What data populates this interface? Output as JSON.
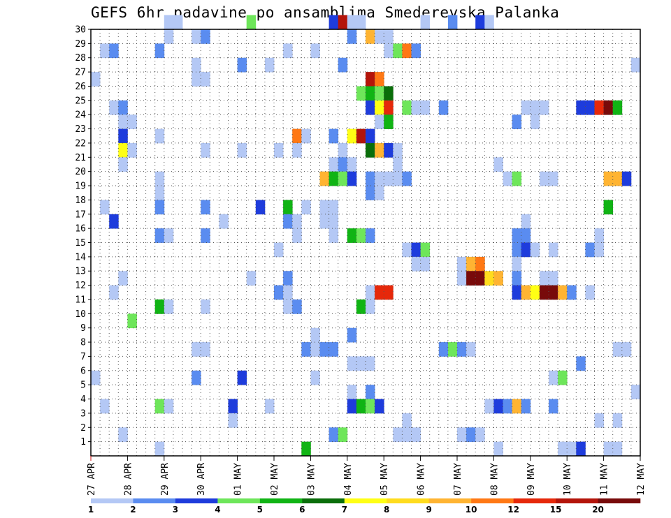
{
  "chart_data": {
    "type": "heatmap",
    "title": "GEFS 6hr padavine po ansamblima Smederevska Palanka",
    "xlabel": "",
    "ylabel": "",
    "x_tick_labels": [
      "27 APR",
      "28 APR",
      "29 APR",
      "30 APR",
      "01 MAY",
      "02 MAY",
      "03 MAY",
      "04 MAY",
      "05 MAY",
      "06 MAY",
      "07 MAY",
      "08 MAY",
      "09 MAY",
      "10 MAY",
      "11 MAY",
      "12 MAY"
    ],
    "x_steps_per_day": 4,
    "x_total_steps": 60,
    "y_tick_labels": [
      "1",
      "2",
      "3",
      "4",
      "5",
      "6",
      "7",
      "8",
      "9",
      "10",
      "11",
      "12",
      "13",
      "14",
      "15",
      "16",
      "17",
      "18",
      "19",
      "20",
      "21",
      "22",
      "23",
      "24",
      "25",
      "26",
      "27",
      "28",
      "29",
      "30"
    ],
    "ylim": [
      0,
      30
    ],
    "grid": true,
    "legend": {
      "placement": "bottom",
      "levels": [
        "1",
        "2",
        "3",
        "4",
        "5",
        "6",
        "7",
        "8",
        "9",
        "10",
        "12",
        "15",
        "20"
      ],
      "colors": [
        "#b4c8f5",
        "#5a8cf0",
        "#1e3cdc",
        "#6ee65a",
        "#10b414",
        "#0a6e0a",
        "#ffff14",
        "#ffdc1e",
        "#ffb432",
        "#ff7814",
        "#e6280a",
        "#b4140a",
        "#780a0a"
      ]
    },
    "cells": [
      [
        8,
        30,
        1
      ],
      [
        9,
        30,
        1
      ],
      [
        17,
        30,
        4
      ],
      [
        26,
        30,
        3
      ],
      [
        27,
        30,
        12
      ],
      [
        28,
        30,
        1
      ],
      [
        29,
        30,
        1
      ],
      [
        36,
        30,
        1
      ],
      [
        39,
        30,
        2
      ],
      [
        42,
        30,
        3
      ],
      [
        43,
        30,
        1
      ],
      [
        8,
        29,
        1
      ],
      [
        11,
        29,
        1
      ],
      [
        12,
        29,
        2
      ],
      [
        28,
        29,
        2
      ],
      [
        30,
        29,
        9
      ],
      [
        31,
        29,
        1
      ],
      [
        32,
        29,
        1
      ],
      [
        1,
        28,
        1
      ],
      [
        2,
        28,
        2
      ],
      [
        7,
        28,
        2
      ],
      [
        21,
        28,
        1
      ],
      [
        24,
        28,
        1
      ],
      [
        32,
        28,
        1
      ],
      [
        33,
        28,
        4
      ],
      [
        34,
        28,
        10
      ],
      [
        35,
        28,
        2
      ],
      [
        11,
        27,
        1
      ],
      [
        16,
        27,
        2
      ],
      [
        19,
        27,
        1
      ],
      [
        27,
        27,
        2
      ],
      [
        59,
        27,
        1
      ],
      [
        0,
        26,
        1
      ],
      [
        11,
        26,
        1
      ],
      [
        12,
        26,
        1
      ],
      [
        30,
        26,
        12
      ],
      [
        31,
        26,
        10
      ],
      [
        29,
        25,
        4
      ],
      [
        30,
        25,
        5
      ],
      [
        31,
        25,
        4
      ],
      [
        32,
        25,
        6
      ],
      [
        2,
        24,
        1
      ],
      [
        3,
        24,
        2
      ],
      [
        30,
        24,
        3
      ],
      [
        31,
        24,
        7
      ],
      [
        32,
        24,
        11
      ],
      [
        34,
        24,
        4
      ],
      [
        35,
        24,
        1
      ],
      [
        36,
        24,
        1
      ],
      [
        38,
        24,
        2
      ],
      [
        47,
        24,
        1
      ],
      [
        48,
        24,
        1
      ],
      [
        49,
        24,
        1
      ],
      [
        53,
        24,
        3
      ],
      [
        54,
        24,
        3
      ],
      [
        55,
        24,
        11
      ],
      [
        56,
        24,
        13
      ],
      [
        57,
        24,
        5
      ],
      [
        3,
        23,
        1
      ],
      [
        4,
        23,
        1
      ],
      [
        31,
        23,
        1
      ],
      [
        32,
        23,
        5
      ],
      [
        46,
        23,
        2
      ],
      [
        48,
        23,
        1
      ],
      [
        3,
        22,
        3
      ],
      [
        7,
        22,
        1
      ],
      [
        22,
        22,
        10
      ],
      [
        23,
        22,
        1
      ],
      [
        26,
        22,
        2
      ],
      [
        28,
        22,
        7
      ],
      [
        29,
        22,
        12
      ],
      [
        30,
        22,
        3
      ],
      [
        3,
        21,
        7
      ],
      [
        4,
        21,
        1
      ],
      [
        12,
        21,
        1
      ],
      [
        16,
        21,
        1
      ],
      [
        20,
        21,
        1
      ],
      [
        22,
        21,
        1
      ],
      [
        27,
        21,
        1
      ],
      [
        30,
        21,
        6
      ],
      [
        31,
        21,
        9
      ],
      [
        32,
        21,
        3
      ],
      [
        33,
        21,
        1
      ],
      [
        3,
        20,
        1
      ],
      [
        26,
        20,
        1
      ],
      [
        27,
        20,
        2
      ],
      [
        28,
        20,
        1
      ],
      [
        33,
        20,
        1
      ],
      [
        44,
        20,
        1
      ],
      [
        7,
        19,
        1
      ],
      [
        25,
        19,
        9
      ],
      [
        26,
        19,
        5
      ],
      [
        27,
        19,
        4
      ],
      [
        28,
        19,
        3
      ],
      [
        30,
        19,
        2
      ],
      [
        31,
        19,
        1
      ],
      [
        32,
        19,
        1
      ],
      [
        33,
        19,
        1
      ],
      [
        34,
        19,
        2
      ],
      [
        45,
        19,
        1
      ],
      [
        46,
        19,
        4
      ],
      [
        49,
        19,
        1
      ],
      [
        50,
        19,
        1
      ],
      [
        56,
        19,
        9
      ],
      [
        57,
        19,
        9
      ],
      [
        58,
        19,
        3
      ],
      [
        7,
        18,
        1
      ],
      [
        30,
        18,
        2
      ],
      [
        31,
        18,
        1
      ],
      [
        1,
        17,
        1
      ],
      [
        7,
        17,
        2
      ],
      [
        12,
        17,
        2
      ],
      [
        18,
        17,
        3
      ],
      [
        21,
        17,
        5
      ],
      [
        23,
        17,
        1
      ],
      [
        25,
        17,
        1
      ],
      [
        26,
        17,
        1
      ],
      [
        56,
        17,
        5
      ],
      [
        2,
        16,
        3
      ],
      [
        14,
        16,
        1
      ],
      [
        21,
        16,
        2
      ],
      [
        22,
        16,
        1
      ],
      [
        25,
        16,
        1
      ],
      [
        26,
        16,
        1
      ],
      [
        47,
        16,
        1
      ],
      [
        7,
        15,
        2
      ],
      [
        8,
        15,
        1
      ],
      [
        12,
        15,
        2
      ],
      [
        22,
        15,
        1
      ],
      [
        26,
        15,
        1
      ],
      [
        28,
        15,
        5
      ],
      [
        29,
        15,
        4
      ],
      [
        30,
        15,
        2
      ],
      [
        46,
        15,
        2
      ],
      [
        47,
        15,
        2
      ],
      [
        55,
        15,
        1
      ],
      [
        20,
        14,
        1
      ],
      [
        34,
        14,
        1
      ],
      [
        35,
        14,
        3
      ],
      [
        36,
        14,
        4
      ],
      [
        46,
        14,
        2
      ],
      [
        47,
        14,
        3
      ],
      [
        48,
        14,
        1
      ],
      [
        50,
        14,
        1
      ],
      [
        54,
        14,
        2
      ],
      [
        55,
        14,
        1
      ],
      [
        35,
        13,
        1
      ],
      [
        36,
        13,
        1
      ],
      [
        40,
        13,
        1
      ],
      [
        41,
        13,
        9
      ],
      [
        42,
        13,
        10
      ],
      [
        46,
        13,
        1
      ],
      [
        3,
        12,
        1
      ],
      [
        17,
        12,
        1
      ],
      [
        21,
        12,
        2
      ],
      [
        40,
        12,
        1
      ],
      [
        41,
        12,
        13
      ],
      [
        42,
        12,
        13
      ],
      [
        43,
        12,
        8
      ],
      [
        44,
        12,
        9
      ],
      [
        46,
        12,
        2
      ],
      [
        49,
        12,
        1
      ],
      [
        50,
        12,
        1
      ],
      [
        2,
        11,
        1
      ],
      [
        20,
        11,
        2
      ],
      [
        21,
        11,
        1
      ],
      [
        30,
        11,
        1
      ],
      [
        31,
        11,
        11
      ],
      [
        32,
        11,
        11
      ],
      [
        46,
        11,
        3
      ],
      [
        47,
        11,
        9
      ],
      [
        48,
        11,
        7
      ],
      [
        49,
        11,
        13
      ],
      [
        50,
        11,
        13
      ],
      [
        51,
        11,
        9
      ],
      [
        52,
        11,
        2
      ],
      [
        54,
        11,
        1
      ],
      [
        7,
        10,
        5
      ],
      [
        8,
        10,
        1
      ],
      [
        12,
        10,
        1
      ],
      [
        21,
        10,
        1
      ],
      [
        22,
        10,
        2
      ],
      [
        29,
        10,
        5
      ],
      [
        30,
        10,
        1
      ],
      [
        4,
        9,
        4
      ],
      [
        24,
        8,
        1
      ],
      [
        28,
        8,
        2
      ],
      [
        11,
        7,
        1
      ],
      [
        12,
        7,
        1
      ],
      [
        23,
        7,
        2
      ],
      [
        24,
        7,
        1
      ],
      [
        25,
        7,
        2
      ],
      [
        26,
        7,
        2
      ],
      [
        38,
        7,
        2
      ],
      [
        39,
        7,
        4
      ],
      [
        40,
        7,
        2
      ],
      [
        41,
        7,
        1
      ],
      [
        57,
        7,
        1
      ],
      [
        58,
        7,
        1
      ],
      [
        28,
        6,
        1
      ],
      [
        29,
        6,
        1
      ],
      [
        30,
        6,
        1
      ],
      [
        53,
        6,
        2
      ],
      [
        0,
        5,
        1
      ],
      [
        11,
        5,
        2
      ],
      [
        16,
        5,
        3
      ],
      [
        24,
        5,
        1
      ],
      [
        50,
        5,
        1
      ],
      [
        51,
        5,
        4
      ],
      [
        28,
        4,
        1
      ],
      [
        30,
        4,
        2
      ],
      [
        59,
        4,
        1
      ],
      [
        1,
        3,
        1
      ],
      [
        7,
        3,
        4
      ],
      [
        8,
        3,
        1
      ],
      [
        15,
        3,
        3
      ],
      [
        19,
        3,
        1
      ],
      [
        28,
        3,
        3
      ],
      [
        29,
        3,
        5
      ],
      [
        30,
        3,
        4
      ],
      [
        31,
        3,
        3
      ],
      [
        43,
        3,
        1
      ],
      [
        44,
        3,
        3
      ],
      [
        45,
        3,
        2
      ],
      [
        46,
        3,
        9
      ],
      [
        47,
        3,
        2
      ],
      [
        50,
        3,
        2
      ],
      [
        15,
        2,
        1
      ],
      [
        34,
        2,
        1
      ],
      [
        55,
        2,
        1
      ],
      [
        57,
        2,
        1
      ],
      [
        3,
        1,
        1
      ],
      [
        26,
        1,
        2
      ],
      [
        27,
        1,
        4
      ],
      [
        33,
        1,
        1
      ],
      [
        34,
        1,
        1
      ],
      [
        35,
        1,
        1
      ],
      [
        40,
        1,
        1
      ],
      [
        41,
        1,
        2
      ],
      [
        42,
        1,
        1
      ],
      [
        7,
        0,
        1
      ],
      [
        23,
        0,
        5
      ],
      [
        44,
        0,
        1
      ],
      [
        51,
        0,
        1
      ],
      [
        52,
        0,
        1
      ],
      [
        53,
        0,
        3
      ],
      [
        56,
        0,
        1
      ],
      [
        57,
        0,
        1
      ]
    ]
  }
}
